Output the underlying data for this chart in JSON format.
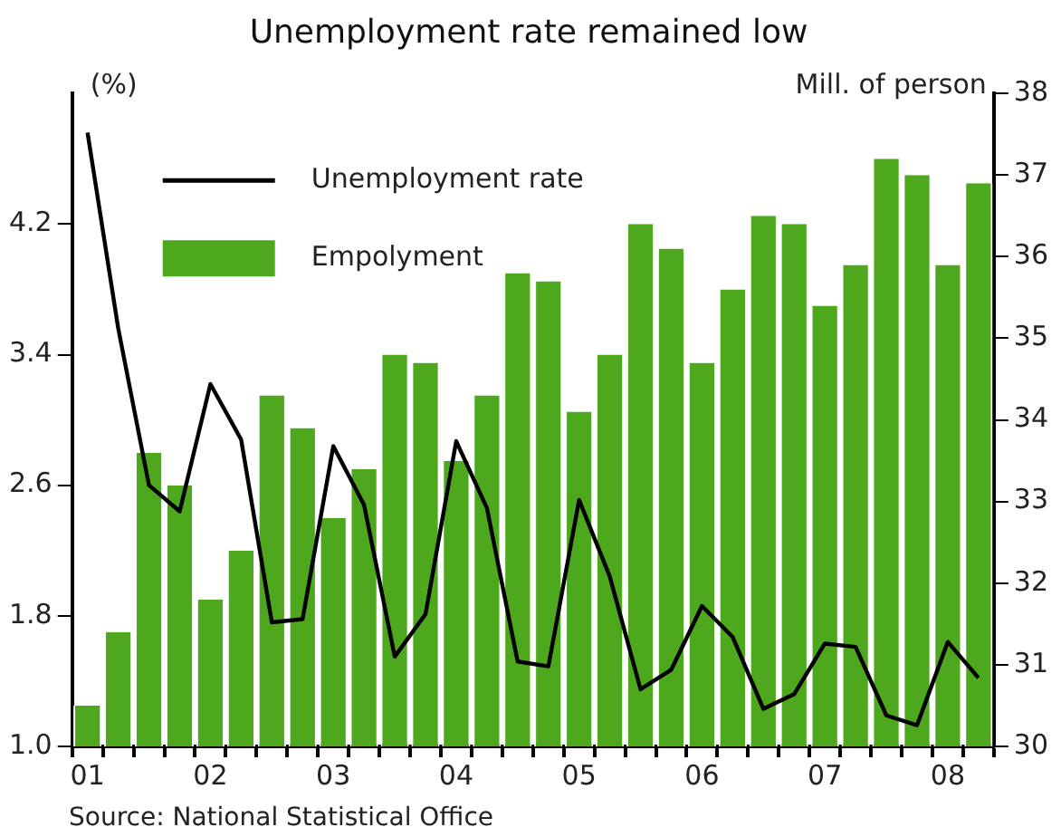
{
  "chart_data": {
    "type": "bar",
    "title": "Unemployment rate remained low",
    "ylabel": "(%)",
    "y2label": "Mill. of person",
    "categories": [
      "01",
      null,
      null,
      null,
      "02",
      null,
      null,
      null,
      "03",
      null,
      null,
      null,
      "04",
      null,
      null,
      null,
      "05",
      null,
      null,
      null,
      "06",
      null,
      null,
      null,
      "07",
      null,
      null,
      null,
      "08",
      null
    ],
    "series": [
      {
        "name": "Unemployment rate",
        "type": "line",
        "color": "#000000",
        "values": [
          4.76,
          3.56,
          2.6,
          2.44,
          3.22,
          2.88,
          1.76,
          1.78,
          2.84,
          2.48,
          1.55,
          1.81,
          2.87,
          2.46,
          1.52,
          1.49,
          2.51,
          2.04,
          1.35,
          1.47,
          1.86,
          1.67,
          1.23,
          1.32,
          1.63,
          1.61,
          1.19,
          1.13,
          1.64,
          1.42
        ]
      },
      {
        "name": "Empolyment",
        "axis": "y2",
        "color": "#4ea81e",
        "values": [
          30.5,
          31.4,
          33.6,
          33.2,
          31.8,
          32.4,
          34.3,
          33.9,
          32.8,
          33.4,
          34.8,
          34.7,
          33.5,
          34.3,
          35.8,
          35.7,
          34.1,
          34.8,
          36.4,
          36.1,
          34.7,
          35.6,
          36.5,
          36.4,
          35.4,
          35.9,
          37.2,
          37.0,
          35.9,
          36.9
        ]
      }
    ],
    "ylim": [
      1,
      5
    ],
    "yticks": [
      {
        "value": 1,
        "label": "1.0"
      },
      {
        "value": 1.8,
        "label": "1.8"
      },
      {
        "value": 2.6,
        "label": "2.6"
      },
      {
        "value": 3.4,
        "label": "3.4"
      },
      {
        "value": 4.2,
        "label": "4.2"
      }
    ],
    "y2lim": [
      30,
      38
    ],
    "y2ticks": [
      30,
      31,
      32,
      33,
      34,
      35,
      36,
      37,
      38
    ],
    "grid": false,
    "legend": "top left",
    "marker": "none",
    "line_style": "solid",
    "annotations": [
      "Source: National Statistical Office"
    ]
  }
}
